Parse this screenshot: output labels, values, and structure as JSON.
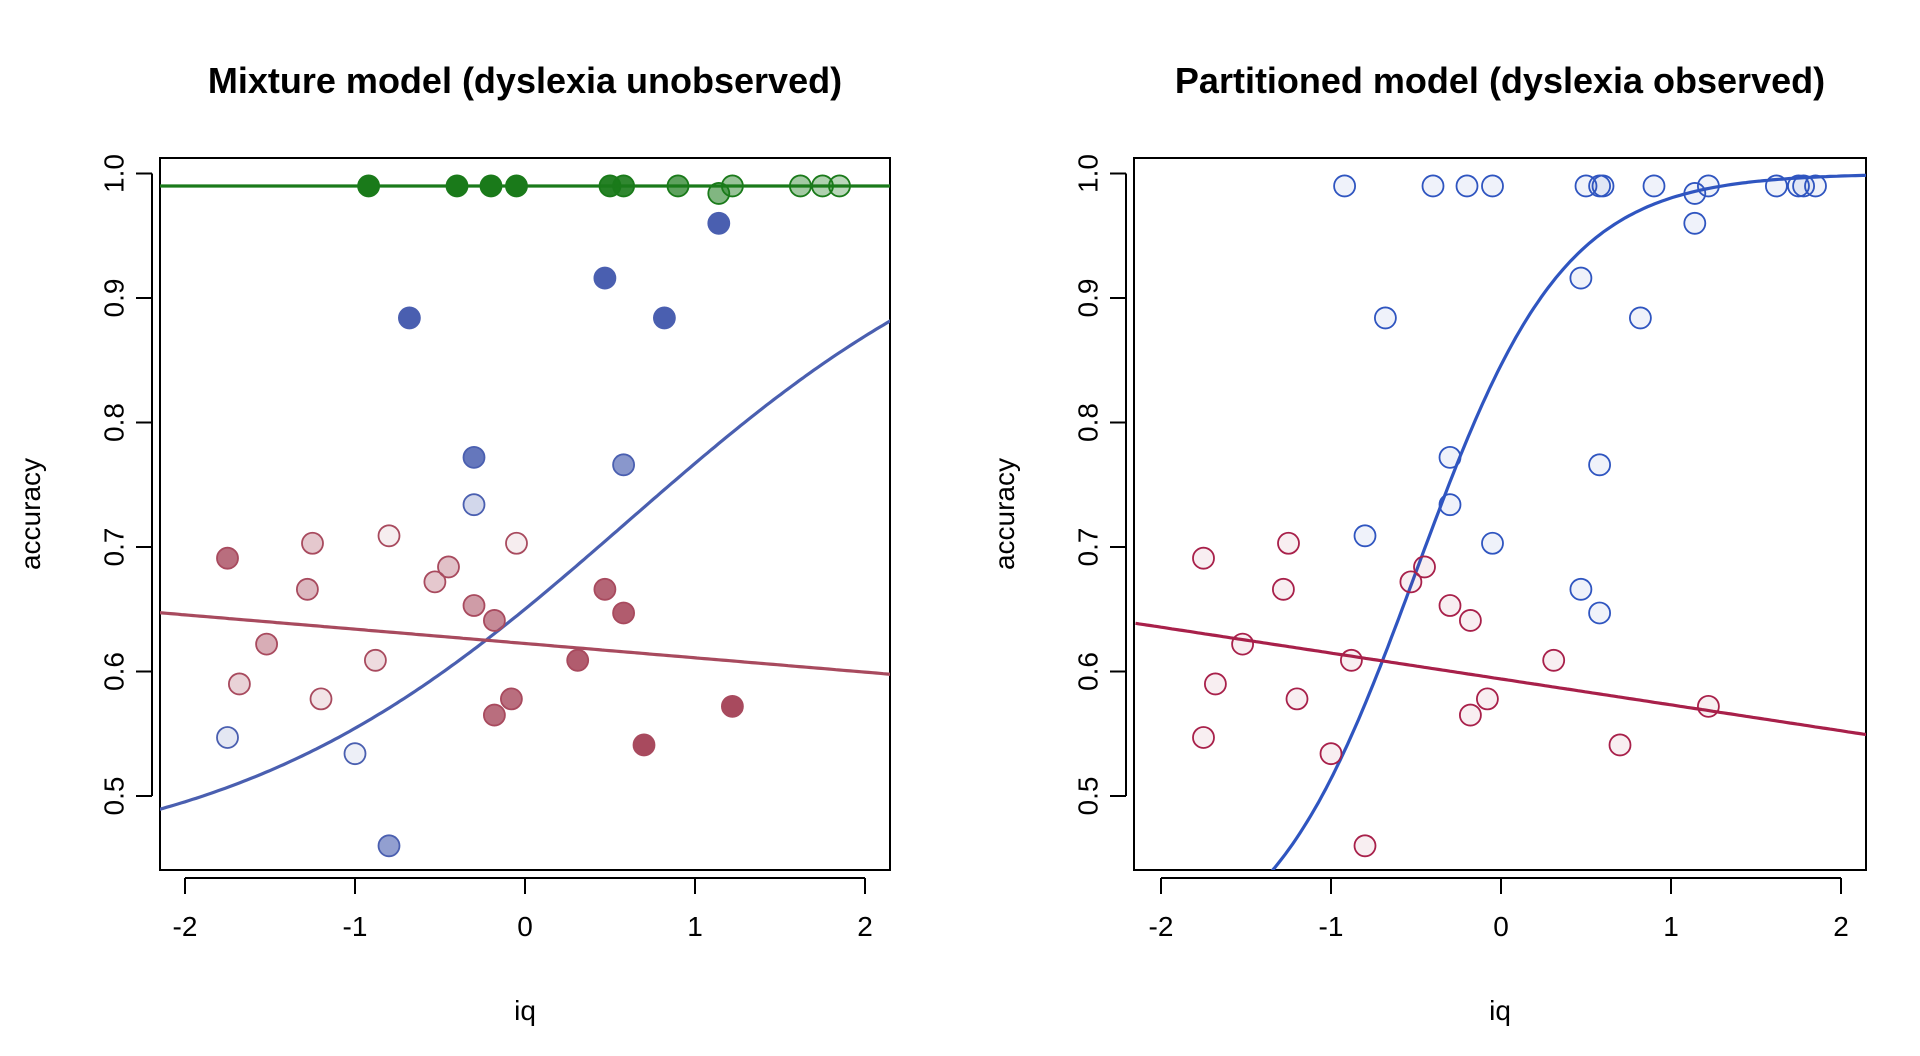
{
  "chart_data": [
    {
      "type": "scatter",
      "title": "Mixture model (dyslexia unobserved)",
      "xlabel": "iq",
      "ylabel": "accuracy",
      "xlim": [
        -2.15,
        2.15
      ],
      "ylim": [
        0.44,
        1.01
      ],
      "xticks": [
        "-2",
        "-1",
        "0",
        "1",
        "2"
      ],
      "yticks": [
        "0.5",
        "0.6",
        "0.7",
        "0.8",
        "0.9",
        "1.0"
      ],
      "grid": false,
      "series": [
        {
          "color": "#1a7a1a",
          "line": {
            "type": "constant",
            "value": 0.99
          },
          "points": [
            {
              "x": -0.92,
              "y": 0.99,
              "alpha": 1.0
            },
            {
              "x": -0.4,
              "y": 0.99,
              "alpha": 1.0
            },
            {
              "x": -0.2,
              "y": 0.99,
              "alpha": 1.0
            },
            {
              "x": -0.05,
              "y": 0.99,
              "alpha": 1.0
            },
            {
              "x": 0.5,
              "y": 0.99,
              "alpha": 0.95
            },
            {
              "x": 0.58,
              "y": 0.99,
              "alpha": 0.9
            },
            {
              "x": 0.9,
              "y": 0.99,
              "alpha": 0.7
            },
            {
              "x": 1.14,
              "y": 0.984,
              "alpha": 0.55
            },
            {
              "x": 1.22,
              "y": 0.99,
              "alpha": 0.45
            },
            {
              "x": 1.62,
              "y": 0.99,
              "alpha": 0.4
            },
            {
              "x": 1.75,
              "y": 0.99,
              "alpha": 0.35
            },
            {
              "x": 1.85,
              "y": 0.99,
              "alpha": 0.3
            }
          ]
        },
        {
          "color": "#4a5fb0",
          "line": {
            "type": "logistic",
            "a": 0.44,
            "b": 2.06,
            "c": 0.6,
            "d": 0.85
          },
          "points": [
            {
              "x": -0.68,
              "y": 0.884,
              "alpha": 1.0
            },
            {
              "x": 0.47,
              "y": 0.916,
              "alpha": 1.0
            },
            {
              "x": 1.14,
              "y": 0.96,
              "alpha": 1.0
            },
            {
              "x": 0.82,
              "y": 0.884,
              "alpha": 1.0
            },
            {
              "x": -0.3,
              "y": 0.772,
              "alpha": 0.85
            },
            {
              "x": 0.58,
              "y": 0.766,
              "alpha": 0.65
            },
            {
              "x": -0.3,
              "y": 0.734,
              "alpha": 0.25
            },
            {
              "x": -0.8,
              "y": 0.46,
              "alpha": 0.6
            },
            {
              "x": -1.75,
              "y": 0.547,
              "alpha": 0.15
            },
            {
              "x": -1.0,
              "y": 0.534,
              "alpha": 0.1
            }
          ]
        },
        {
          "color": "#a84a5e",
          "line": {
            "type": "linear",
            "intercept": 0.6225,
            "slope": -0.0115
          },
          "points": [
            {
              "x": -1.75,
              "y": 0.691,
              "alpha": 0.8
            },
            {
              "x": -1.68,
              "y": 0.59,
              "alpha": 0.25
            },
            {
              "x": -1.52,
              "y": 0.622,
              "alpha": 0.45
            },
            {
              "x": -1.28,
              "y": 0.666,
              "alpha": 0.4
            },
            {
              "x": -1.25,
              "y": 0.703,
              "alpha": 0.3
            },
            {
              "x": -1.2,
              "y": 0.578,
              "alpha": 0.15
            },
            {
              "x": -0.88,
              "y": 0.609,
              "alpha": 0.2
            },
            {
              "x": -0.8,
              "y": 0.709,
              "alpha": 0.1
            },
            {
              "x": -0.53,
              "y": 0.672,
              "alpha": 0.3
            },
            {
              "x": -0.45,
              "y": 0.684,
              "alpha": 0.35
            },
            {
              "x": -0.3,
              "y": 0.653,
              "alpha": 0.55
            },
            {
              "x": -0.18,
              "y": 0.641,
              "alpha": 0.65
            },
            {
              "x": -0.18,
              "y": 0.565,
              "alpha": 0.8
            },
            {
              "x": -0.08,
              "y": 0.578,
              "alpha": 0.8
            },
            {
              "x": -0.05,
              "y": 0.703,
              "alpha": 0.1
            },
            {
              "x": 0.31,
              "y": 0.609,
              "alpha": 0.9
            },
            {
              "x": 0.47,
              "y": 0.666,
              "alpha": 0.85
            },
            {
              "x": 0.58,
              "y": 0.647,
              "alpha": 0.9
            },
            {
              "x": 0.7,
              "y": 0.541,
              "alpha": 1.0
            },
            {
              "x": 1.22,
              "y": 0.572,
              "alpha": 1.0
            }
          ]
        }
      ]
    },
    {
      "type": "scatter",
      "title": "Partitioned model (dyslexia observed)",
      "xlabel": "iq",
      "ylabel": "accuracy",
      "xlim": [
        -2.15,
        2.15
      ],
      "ylim": [
        0.44,
        1.01
      ],
      "xticks": [
        "-2",
        "-1",
        "0",
        "1",
        "2"
      ],
      "yticks": [
        "0.5",
        "0.6",
        "0.7",
        "0.8",
        "0.9",
        "1.0"
      ],
      "grid": false,
      "series": [
        {
          "color": "#2f55c0",
          "line": {
            "type": "logistic",
            "a": 0.36,
            "b": 1.0,
            "c": -0.5,
            "d": 2.3
          },
          "points": [
            {
              "x": -0.92,
              "y": 0.99
            },
            {
              "x": -0.4,
              "y": 0.99
            },
            {
              "x": -0.2,
              "y": 0.99
            },
            {
              "x": -0.05,
              "y": 0.99
            },
            {
              "x": 0.5,
              "y": 0.99
            },
            {
              "x": 0.58,
              "y": 0.99
            },
            {
              "x": 0.6,
              "y": 0.99
            },
            {
              "x": 0.9,
              "y": 0.99
            },
            {
              "x": 1.14,
              "y": 0.984
            },
            {
              "x": 1.22,
              "y": 0.99
            },
            {
              "x": 1.62,
              "y": 0.99
            },
            {
              "x": 1.75,
              "y": 0.99
            },
            {
              "x": 1.78,
              "y": 0.99
            },
            {
              "x": 1.85,
              "y": 0.99
            },
            {
              "x": 1.14,
              "y": 0.96
            },
            {
              "x": 0.47,
              "y": 0.916
            },
            {
              "x": 0.82,
              "y": 0.884
            },
            {
              "x": -0.68,
              "y": 0.884
            },
            {
              "x": -0.3,
              "y": 0.772
            },
            {
              "x": 0.58,
              "y": 0.766
            },
            {
              "x": -0.3,
              "y": 0.734
            },
            {
              "x": -0.8,
              "y": 0.709
            },
            {
              "x": -0.05,
              "y": 0.703
            },
            {
              "x": 0.47,
              "y": 0.666
            },
            {
              "x": 0.58,
              "y": 0.647
            }
          ]
        },
        {
          "color": "#a8204a",
          "line": {
            "type": "linear",
            "intercept": 0.594,
            "slope": -0.0208
          },
          "points": [
            {
              "x": -1.75,
              "y": 0.691
            },
            {
              "x": -1.25,
              "y": 0.703
            },
            {
              "x": -1.28,
              "y": 0.666
            },
            {
              "x": -1.52,
              "y": 0.622
            },
            {
              "x": -1.68,
              "y": 0.59
            },
            {
              "x": -1.2,
              "y": 0.578
            },
            {
              "x": -1.75,
              "y": 0.547
            },
            {
              "x": -0.88,
              "y": 0.609
            },
            {
              "x": -1.0,
              "y": 0.534
            },
            {
              "x": -0.8,
              "y": 0.46
            },
            {
              "x": -0.53,
              "y": 0.672
            },
            {
              "x": -0.45,
              "y": 0.684
            },
            {
              "x": -0.3,
              "y": 0.653
            },
            {
              "x": -0.18,
              "y": 0.641
            },
            {
              "x": -0.18,
              "y": 0.565
            },
            {
              "x": -0.08,
              "y": 0.578
            },
            {
              "x": 0.31,
              "y": 0.609
            },
            {
              "x": 0.7,
              "y": 0.541
            },
            {
              "x": 1.22,
              "y": 0.572
            }
          ]
        }
      ]
    }
  ]
}
